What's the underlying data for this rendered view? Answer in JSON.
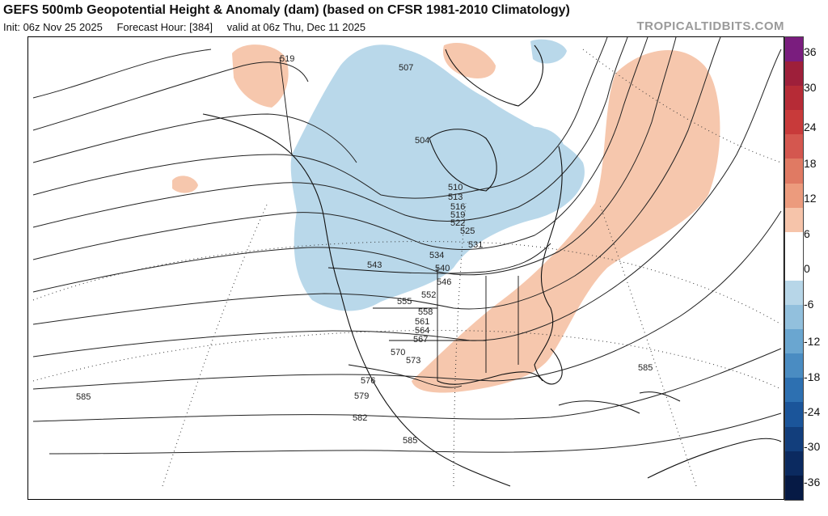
{
  "header": {
    "title": "GEFS 500mb Geopotential Height & Anomaly (dam) (based on CFSR 1981-2010 Climatology)",
    "init": "Init: 06z Nov 25 2025",
    "forecast_hour": "Forecast Hour: [384]",
    "valid": "valid at 06z Thu, Dec 11 2025",
    "brand": "TROPICALTIDBITS.COM"
  },
  "colorbar": {
    "ticks": [
      "36",
      "30",
      "24",
      "18",
      "12",
      "6",
      "0",
      "-6",
      "-12",
      "-18",
      "-24",
      "-30",
      "-36"
    ],
    "colors": [
      "#7a1d7e",
      "#9e1f3a",
      "#b62b36",
      "#c83a3a",
      "#d4574f",
      "#e07a63",
      "#ec9b7d",
      "#f6c4aa",
      "#ffffff",
      "#ffffff",
      "#b7d6e8",
      "#92c0dd",
      "#6aa6d0",
      "#4a8cc2",
      "#2d70b1",
      "#1b559a",
      "#123e7c",
      "#0b2a60",
      "#061a45"
    ]
  },
  "contour_labels": [
    "519",
    "507",
    "504",
    "510",
    "513",
    "516",
    "519",
    "522",
    "525",
    "531",
    "534",
    "540",
    "543",
    "546",
    "552",
    "555",
    "558",
    "561",
    "564",
    "567",
    "570",
    "573",
    "576",
    "579",
    "582",
    "585",
    "585",
    "585"
  ]
}
